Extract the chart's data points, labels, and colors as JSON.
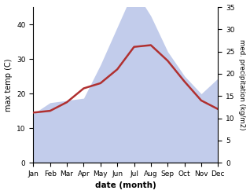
{
  "months": [
    "Jan",
    "Feb",
    "Mar",
    "Apr",
    "May",
    "Jun",
    "Jul",
    "Aug",
    "Sep",
    "Oct",
    "Nov",
    "Dec"
  ],
  "x": [
    0,
    1,
    2,
    3,
    4,
    5,
    6,
    7,
    8,
    9,
    10,
    11
  ],
  "temp": [
    14.5,
    15.0,
    17.5,
    21.5,
    23.0,
    27.0,
    33.5,
    34.0,
    29.5,
    23.5,
    18.0,
    15.5
  ],
  "precip_mm": [
    11.0,
    13.5,
    14.0,
    14.5,
    22.0,
    30.5,
    39.0,
    33.0,
    25.0,
    19.5,
    15.5,
    19.0
  ],
  "temp_color": "#b03030",
  "fill_color": "#b8c4e8",
  "fill_alpha": 0.85,
  "ylabel_left": "max temp (C)",
  "ylabel_right": "med. precipitation (kg/m2)",
  "xlabel": "date (month)",
  "ylim_left": [
    0,
    45
  ],
  "ylim_right": [
    0,
    35
  ],
  "yticks_left": [
    0,
    10,
    20,
    30,
    40
  ],
  "yticks_right": [
    0,
    5,
    10,
    15,
    20,
    25,
    30,
    35
  ],
  "bg_color": "#ffffff",
  "line_width": 1.8,
  "precip_scale": 1.2857
}
